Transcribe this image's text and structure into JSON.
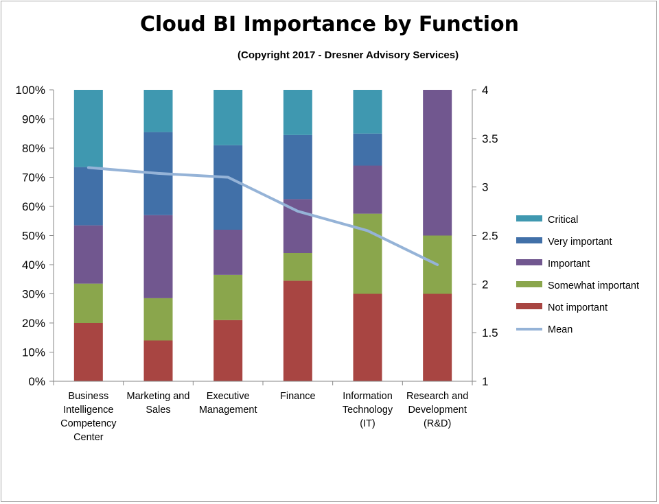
{
  "chart_data": {
    "type": "bar",
    "stacked": true,
    "title": "Cloud BI Importance by Function",
    "subtitle": "(Copyright 2017 - Dresner Advisory Services)",
    "categories": [
      [
        "Business",
        "Intelligence",
        "Competency",
        "Center"
      ],
      [
        "Marketing and",
        "Sales"
      ],
      [
        "Executive",
        "Management"
      ],
      [
        "Finance"
      ],
      [
        "Information",
        "Technology",
        "(IT)"
      ],
      [
        "Research and",
        "Development",
        "(R&D)"
      ]
    ],
    "series": [
      {
        "name": "Not important",
        "color": "#a84542",
        "values": [
          20,
          14,
          21,
          34.5,
          30,
          30
        ]
      },
      {
        "name": "Somewhat important",
        "color": "#8aa64c",
        "values": [
          13.5,
          14.5,
          15.5,
          9.5,
          27.5,
          20
        ]
      },
      {
        "name": "Important",
        "color": "#71578f",
        "values": [
          20,
          28.5,
          15.5,
          18.5,
          16.5,
          50
        ]
      },
      {
        "name": "Very important",
        "color": "#4170a8",
        "values": [
          20,
          28.5,
          29,
          22,
          11,
          0
        ]
      },
      {
        "name": "Critical",
        "color": "#3f98b0",
        "values": [
          26.5,
          14.5,
          19,
          15.5,
          15,
          0
        ]
      }
    ],
    "line_series": {
      "name": "Mean",
      "color": "#95b3d7",
      "axis": "right",
      "values": [
        3.2,
        3.14,
        3.1,
        2.75,
        2.55,
        2.2
      ]
    },
    "y_left": {
      "ticks": [
        "0%",
        "10%",
        "20%",
        "30%",
        "40%",
        "50%",
        "60%",
        "70%",
        "80%",
        "90%",
        "100%"
      ],
      "min": 0,
      "max": 100
    },
    "y_right": {
      "ticks": [
        "1",
        "1.5",
        "2",
        "2.5",
        "3",
        "3.5",
        "4"
      ],
      "min": 1,
      "max": 4
    },
    "legend_position": "right",
    "grid": false
  }
}
